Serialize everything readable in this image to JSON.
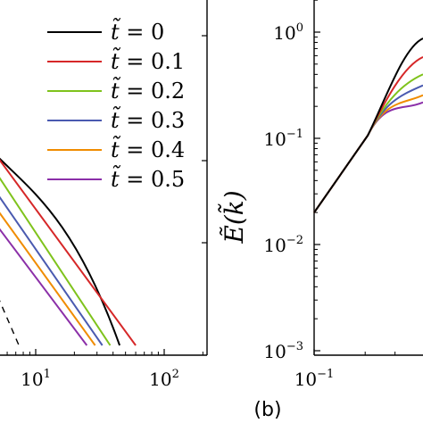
{
  "chart_data": [
    {
      "type": "line",
      "panel": "a",
      "xscale": "log",
      "yscale": "log",
      "x_ticks": [
        {
          "value": 10,
          "base": "10",
          "exp": "1"
        },
        {
          "value": 100,
          "base": "10",
          "exp": "2"
        }
      ],
      "legend_position": "upper-right",
      "series": [
        {
          "name": "t̃ = 0",
          "color": "#000000",
          "points": [
            [
              5.6,
              0.03
            ],
            [
              45,
              4e-05
            ]
          ]
        },
        {
          "name": "t̃ = 0.1",
          "color": "#d62728",
          "points": [
            [
              5.6,
              0.03
            ],
            [
              60,
              4e-05
            ]
          ]
        },
        {
          "name": "t̃ = 0.2",
          "color": "#7fc31c",
          "points": [
            [
              5.6,
              0.016
            ],
            [
              38,
              4e-05
            ]
          ]
        },
        {
          "name": "t̃ = 0.3",
          "color": "#4a5ab0",
          "points": [
            [
              5.6,
              0.008
            ],
            [
              33,
              4e-05
            ]
          ]
        },
        {
          "name": "t̃ = 0.4",
          "color": "#f08c00",
          "points": [
            [
              5.6,
              0.0045
            ],
            [
              29,
              4e-05
            ]
          ]
        },
        {
          "name": "t̃ = 0.5",
          "color": "#8b2fa8",
          "points": [
            [
              5.6,
              0.0025
            ],
            [
              25,
              4e-05
            ]
          ]
        }
      ],
      "reference_line": {
        "style": "dashed",
        "color": "#000000",
        "points": [
          [
            5.9,
            0.00016
          ],
          [
            11.5,
            4e-05
          ]
        ]
      }
    },
    {
      "type": "line",
      "panel": "b",
      "panel_label": "(b)",
      "xscale": "log",
      "yscale": "log",
      "ylabel": "Ẽ(k̃)",
      "x_ticks": [
        {
          "value": 0.1,
          "base": "10",
          "exp": "−1"
        }
      ],
      "y_ticks": [
        {
          "value": 1,
          "base": "10",
          "exp": "0"
        },
        {
          "value": 0.1,
          "base": "10",
          "exp": "−1"
        },
        {
          "value": 0.01,
          "base": "10",
          "exp": "−2"
        },
        {
          "value": 0.001,
          "base": "10",
          "exp": "−3"
        }
      ],
      "series": [
        {
          "name": "t̃ = 0",
          "color": "#000000",
          "peak": 0.72
        },
        {
          "name": "t̃ = 0.1",
          "color": "#d62728",
          "peak": 0.48
        },
        {
          "name": "t̃ = 0.2",
          "color": "#7fc31c",
          "peak": 0.33
        },
        {
          "name": "t̃ = 0.3",
          "color": "#4a5ab0",
          "peak": 0.26
        },
        {
          "name": "t̃ = 0.4",
          "color": "#f08c00",
          "peak": 0.21
        },
        {
          "name": "t̃ = 0.5",
          "color": "#8b2fa8",
          "peak": 0.18
        }
      ],
      "left_anchor": {
        "x": 0.1,
        "y": 0.02
      }
    }
  ],
  "legend": [
    {
      "var": "t̃",
      "value": "0",
      "color": "#000000"
    },
    {
      "var": "t̃",
      "value": "0.1",
      "color": "#d62728"
    },
    {
      "var": "t̃",
      "value": "0.2",
      "color": "#7fc31c"
    },
    {
      "var": "t̃",
      "value": "0.3",
      "color": "#4a5ab0"
    },
    {
      "var": "t̃",
      "value": "0.4",
      "color": "#f08c00"
    },
    {
      "var": "t̃",
      "value": "0.5",
      "color": "#8b2fa8"
    }
  ],
  "panel_b_label": "(b)"
}
